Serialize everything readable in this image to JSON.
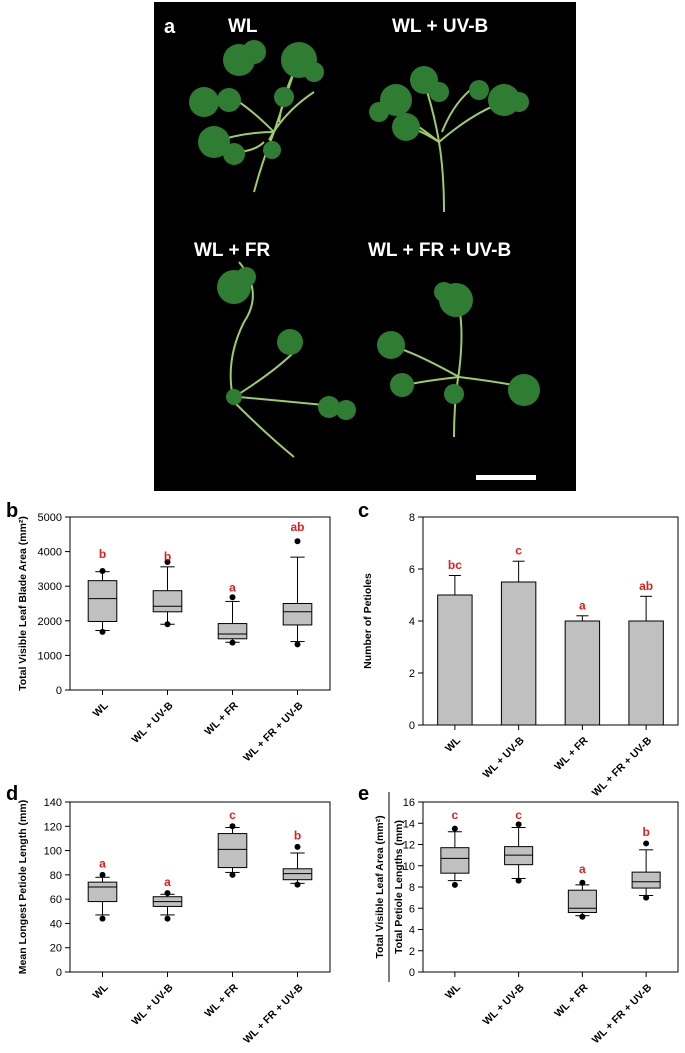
{
  "photo_panel": {
    "letter": "a",
    "labels": [
      "WL",
      "WL + UV-B",
      "WL + FR",
      "WL + FR + UV-B"
    ],
    "colors": {
      "background": "#000000",
      "leaf": "#2f7d32",
      "stem": "#9ecb6a",
      "scale_bar": "#ffffff"
    }
  },
  "panels": [
    {
      "letter": "b"
    },
    {
      "letter": "c"
    },
    {
      "letter": "d"
    },
    {
      "letter": "e"
    }
  ],
  "chart_data": [
    {
      "panel": "b",
      "type": "box",
      "ylabel": "Total Visible Leaf Blade Area (mm²)",
      "ylim": [
        0,
        5000
      ],
      "yticks": [
        0,
        1000,
        2000,
        3000,
        4000,
        5000
      ],
      "categories": [
        "WL",
        "WL + UV-B",
        "WL + FR",
        "WL + FR + UV-B"
      ],
      "boxes": [
        {
          "whisker_low": 1720,
          "q1": 1980,
          "median": 2640,
          "q3": 3160,
          "whisker_high": 3420,
          "outliers": [
            1680,
            3440
          ]
        },
        {
          "whisker_low": 1900,
          "q1": 2260,
          "median": 2420,
          "q3": 2870,
          "whisker_high": 3560,
          "outliers": [
            1900,
            3700
          ]
        },
        {
          "whisker_low": 1380,
          "q1": 1480,
          "median": 1620,
          "q3": 1920,
          "whisker_high": 2560,
          "outliers": [
            1370,
            2680
          ]
        },
        {
          "whisker_low": 1400,
          "q1": 1880,
          "median": 2260,
          "q3": 2500,
          "whisker_high": 3840,
          "outliers": [
            1320,
            4300
          ]
        }
      ],
      "letters": [
        {
          "text": "b",
          "y": 3820
        },
        {
          "text": "b",
          "y": 3740
        },
        {
          "text": "a",
          "y": 2840
        },
        {
          "text": "ab",
          "y": 4600
        }
      ],
      "colors": {
        "box": "#c0c0c0",
        "letters": "#e02020"
      }
    },
    {
      "panel": "c",
      "type": "bar",
      "ylabel": "Number of Petioles",
      "ylim": [
        0,
        8
      ],
      "yticks": [
        0,
        2,
        4,
        6,
        8
      ],
      "categories": [
        "WL",
        "WL + UV-B",
        "WL + FR",
        "WL + FR + UV-B"
      ],
      "values": [
        5.0,
        5.5,
        4.0,
        4.0
      ],
      "errors": [
        0.75,
        0.8,
        0.2,
        0.95
      ],
      "letters": [
        {
          "text": "bc",
          "y": 6.0
        },
        {
          "text": "c",
          "y": 6.55
        },
        {
          "text": "a",
          "y": 4.45
        },
        {
          "text": "ab",
          "y": 5.2
        }
      ],
      "colors": {
        "bar": "#c0c0c0",
        "letters": "#e02020"
      }
    },
    {
      "panel": "d",
      "type": "box",
      "ylabel": "Mean Longest Petiole Length (mm)",
      "ylim": [
        0,
        140
      ],
      "yticks": [
        0,
        20,
        40,
        60,
        80,
        100,
        120,
        140
      ],
      "categories": [
        "WL",
        "WL + UV-B",
        "WL + FR",
        "WL + FR + UV-B"
      ],
      "boxes": [
        {
          "whisker_low": 47,
          "q1": 58,
          "median": 70,
          "q3": 74,
          "whisker_high": 78,
          "outliers": [
            44,
            80
          ]
        },
        {
          "whisker_low": 47,
          "q1": 54,
          "median": 58,
          "q3": 62,
          "whisker_high": 64,
          "outliers": [
            44,
            65
          ]
        },
        {
          "whisker_low": 82,
          "q1": 86,
          "median": 101,
          "q3": 114,
          "whisker_high": 119,
          "outliers": [
            80,
            120
          ]
        },
        {
          "whisker_low": 73,
          "q1": 76,
          "median": 81,
          "q3": 85,
          "whisker_high": 98,
          "outliers": [
            72,
            103
          ]
        }
      ],
      "letters": [
        {
          "text": "a",
          "y": 86
        },
        {
          "text": "a",
          "y": 71
        },
        {
          "text": "c",
          "y": 126
        },
        {
          "text": "b",
          "y": 109
        }
      ],
      "colors": {
        "box": "#c0c0c0",
        "letters": "#e02020"
      }
    },
    {
      "panel": "e",
      "type": "box",
      "ylabel": "Total Visible Leaf Area (mm²)",
      "ylabel2": "Total Petiole Lengths (mm)",
      "ylim": [
        0,
        16
      ],
      "yticks": [
        0,
        2,
        4,
        6,
        8,
        10,
        12,
        14,
        16
      ],
      "categories": [
        "WL",
        "WL + UV-B",
        "WL + FR",
        "WL + FR + UV-B"
      ],
      "boxes": [
        {
          "whisker_low": 8.6,
          "q1": 9.3,
          "median": 10.7,
          "q3": 11.7,
          "whisker_high": 13.2,
          "outliers": [
            8.2,
            13.5
          ]
        },
        {
          "whisker_low": 8.8,
          "q1": 10.1,
          "median": 11.0,
          "q3": 11.8,
          "whisker_high": 13.6,
          "outliers": [
            8.6,
            13.9
          ]
        },
        {
          "whisker_low": 5.3,
          "q1": 5.6,
          "median": 6.0,
          "q3": 7.7,
          "whisker_high": 8.2,
          "outliers": [
            5.2,
            8.4
          ]
        },
        {
          "whisker_low": 7.2,
          "q1": 7.9,
          "median": 8.5,
          "q3": 9.4,
          "whisker_high": 11.5,
          "outliers": [
            7.0,
            12.1
          ]
        }
      ],
      "letters": [
        {
          "text": "c",
          "y": 14.4
        },
        {
          "text": "c",
          "y": 14.4
        },
        {
          "text": "a",
          "y": 9.3
        },
        {
          "text": "b",
          "y": 12.8
        }
      ],
      "colors": {
        "box": "#c0c0c0",
        "letters": "#e02020"
      }
    }
  ]
}
